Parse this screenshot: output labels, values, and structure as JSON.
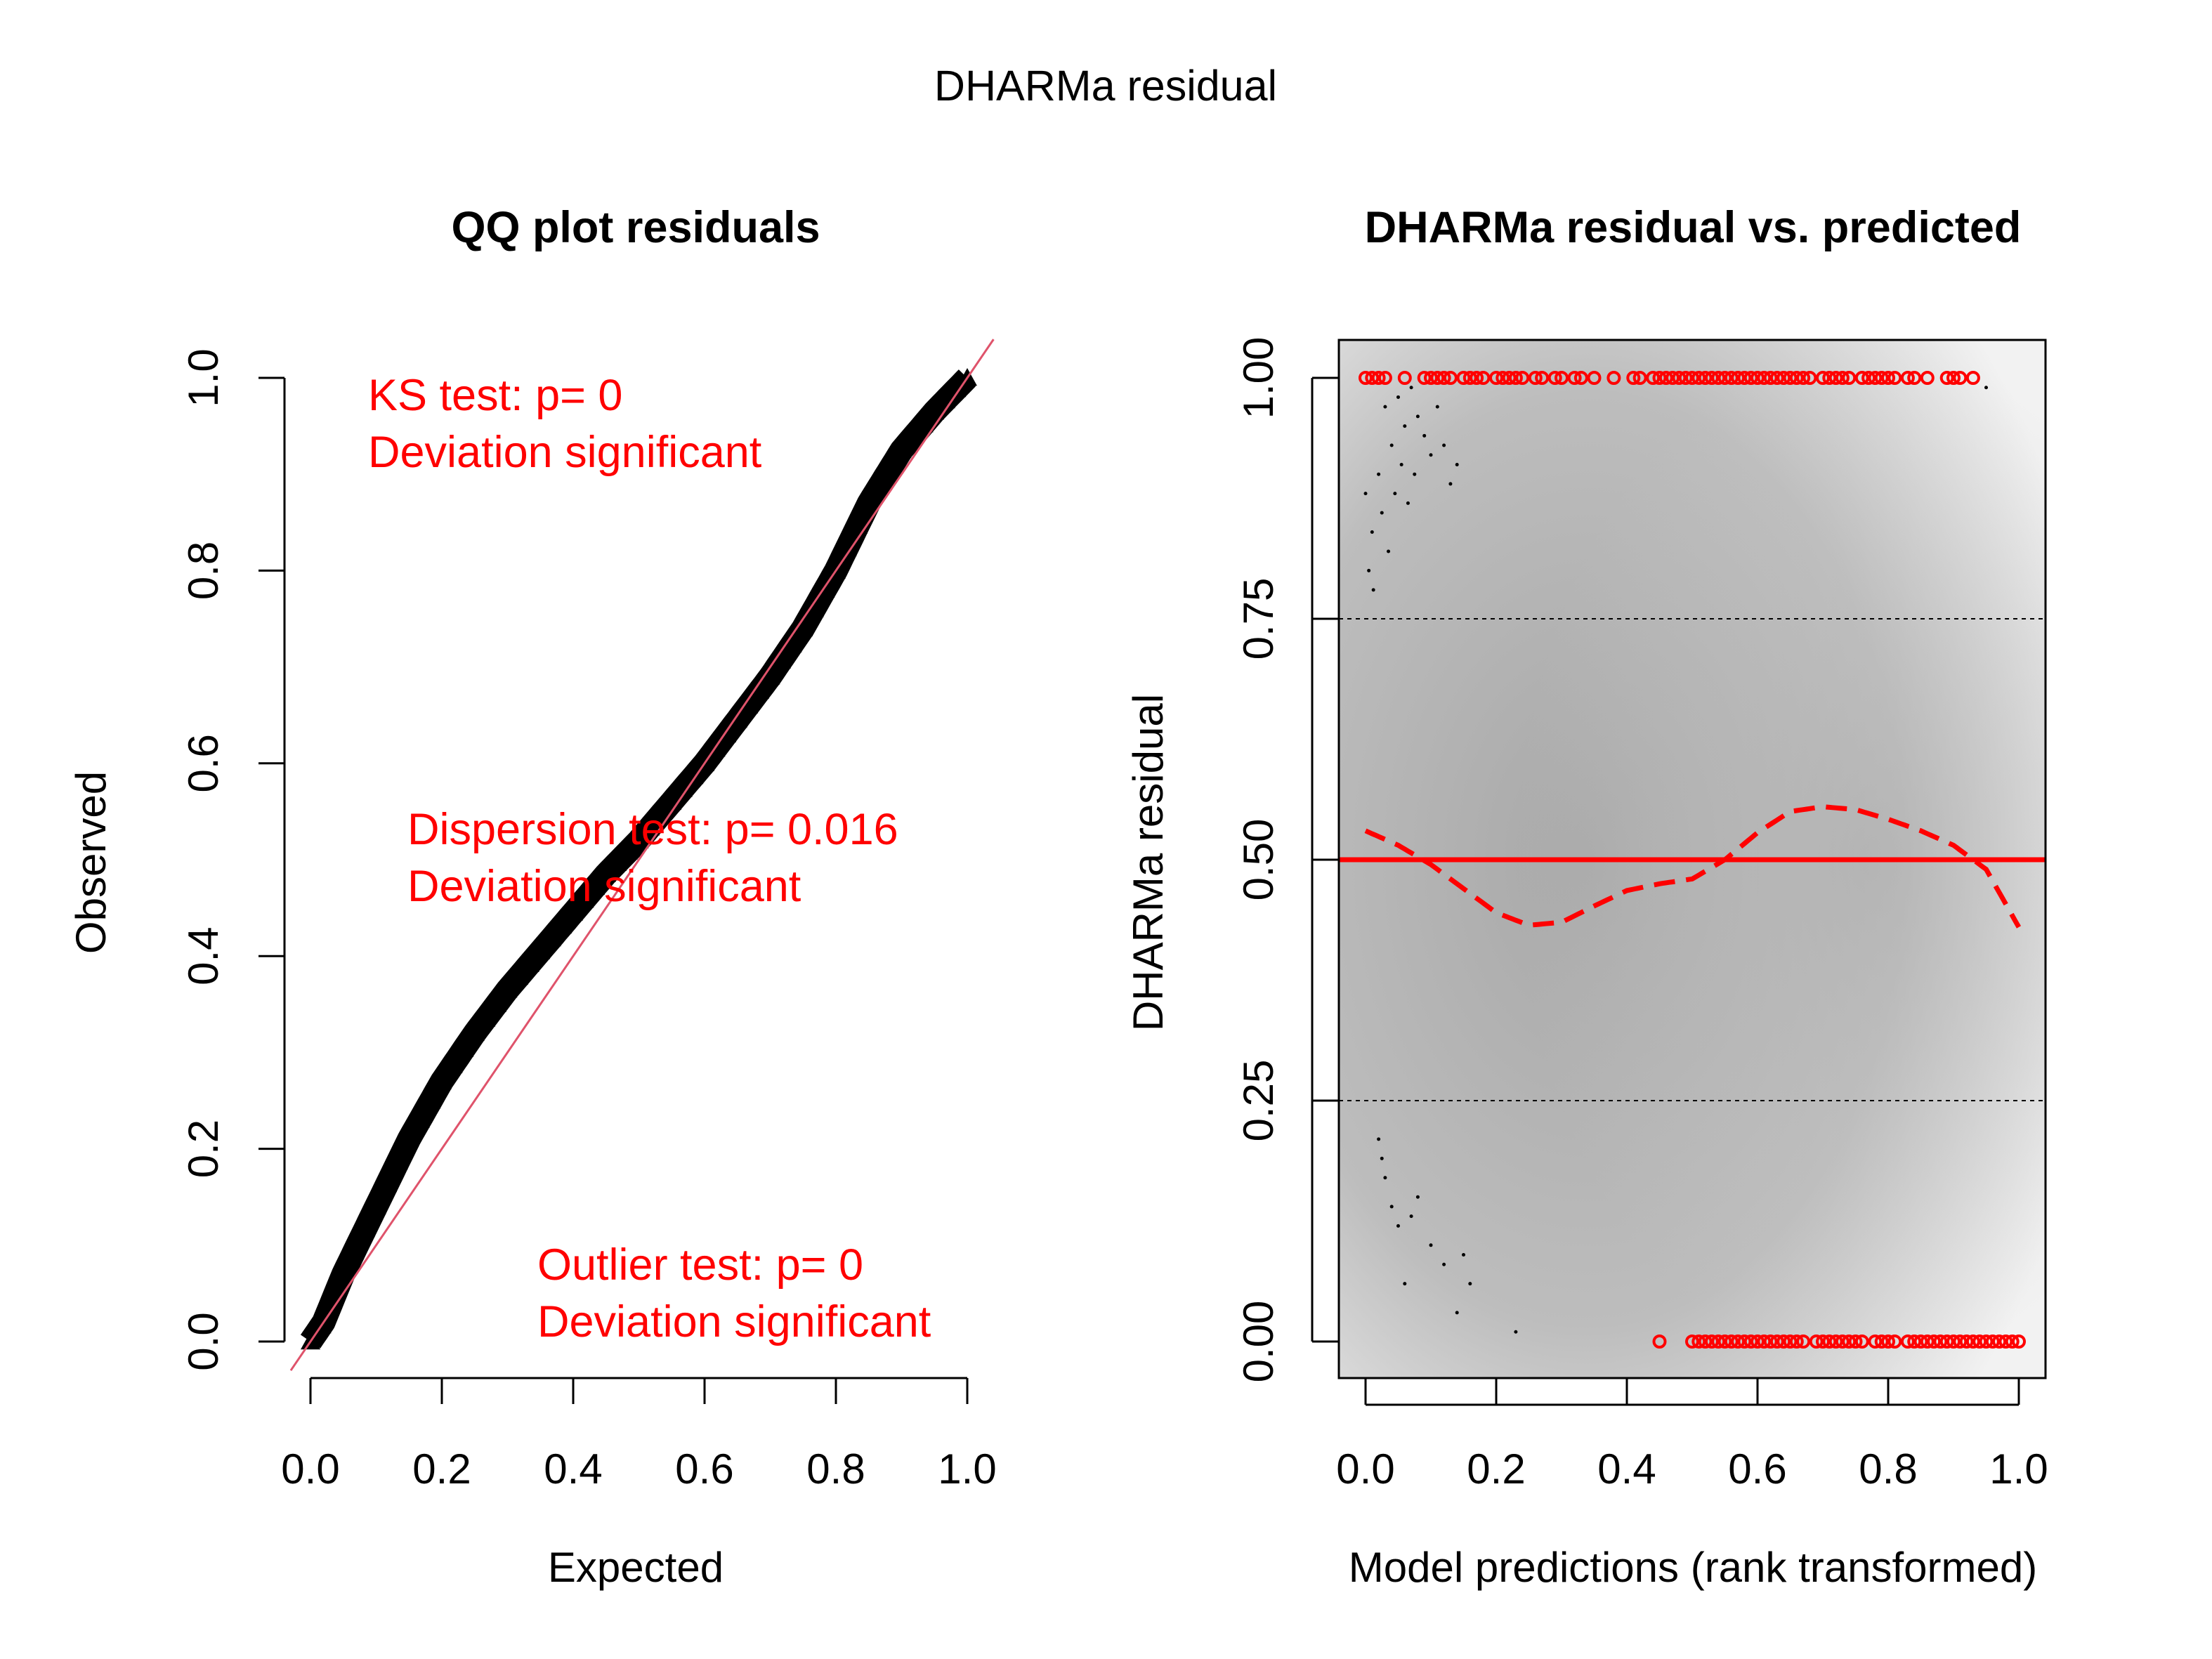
{
  "figure": {
    "title": "DHARMa residual"
  },
  "chart_data": [
    {
      "type": "scatter",
      "panel": "left",
      "title": "QQ plot residuals",
      "xlabel": "Expected",
      "ylabel": "Observed",
      "xlim": [
        0,
        1
      ],
      "ylim": [
        0,
        1
      ],
      "xticks": [
        "0.0",
        "0.2",
        "0.4",
        "0.6",
        "0.8",
        "1.0"
      ],
      "yticks": [
        "0.0",
        "0.2",
        "0.4",
        "0.6",
        "0.8",
        "1.0"
      ],
      "point_color": "#000000",
      "reference_line": {
        "from": [
          0,
          0
        ],
        "to": [
          1,
          1
        ],
        "color": "#DF536B"
      },
      "series": [
        {
          "x": [
            0,
            0.02,
            0.05,
            0.1,
            0.15,
            0.2,
            0.25,
            0.3,
            0.35,
            0.4,
            0.45,
            0.5,
            0.55,
            0.6,
            0.65,
            0.7,
            0.75,
            0.8,
            0.85,
            0.9,
            0.95,
            1.0
          ],
          "y": [
            0,
            0.02,
            0.07,
            0.14,
            0.21,
            0.27,
            0.32,
            0.365,
            0.405,
            0.445,
            0.485,
            0.52,
            0.56,
            0.6,
            0.645,
            0.69,
            0.74,
            0.8,
            0.87,
            0.925,
            0.965,
            1.0
          ]
        }
      ],
      "annotations": [
        {
          "line1": "KS test: p= 0",
          "line2": "Deviation  significant",
          "color": "#FF0000"
        },
        {
          "line1": "Dispersion test: p= 0.016",
          "line2": "Deviation  significant",
          "color": "#FF0000"
        },
        {
          "line1": "Outlier test: p= 0",
          "line2": "Deviation  significant",
          "color": "#FF0000"
        }
      ]
    },
    {
      "type": "scatter",
      "panel": "right",
      "title": "DHARMa residual vs. predicted",
      "xlabel": "Model predictions (rank transformed)",
      "ylabel": "DHARMa residual",
      "xlim": [
        0,
        1
      ],
      "ylim": [
        0,
        1
      ],
      "xticks": [
        "0.0",
        "0.2",
        "0.4",
        "0.6",
        "0.8",
        "1.0"
      ],
      "yticks": [
        "0.00",
        "0.25",
        "0.50",
        "0.75",
        "1.00"
      ],
      "reference_lines": [
        {
          "y": 0.5,
          "color": "#FF0000",
          "style": "solid"
        },
        {
          "y": 0.25,
          "color": "#000000",
          "style": "dotted"
        },
        {
          "y": 0.75,
          "color": "#000000",
          "style": "dotted"
        }
      ],
      "smooth_line": {
        "color": "#FF0000",
        "style": "dashed",
        "x": [
          0.0,
          0.05,
          0.1,
          0.15,
          0.2,
          0.25,
          0.3,
          0.35,
          0.4,
          0.45,
          0.5,
          0.55,
          0.6,
          0.65,
          0.7,
          0.75,
          0.8,
          0.85,
          0.9,
          0.95,
          1.0
        ],
        "y": [
          0.53,
          0.515,
          0.495,
          0.47,
          0.445,
          0.432,
          0.435,
          0.452,
          0.468,
          0.475,
          0.48,
          0.5,
          0.528,
          0.55,
          0.555,
          0.552,
          0.542,
          0.53,
          0.515,
          0.49,
          0.43
        ]
      },
      "outliers": {
        "color": "#FF0000",
        "top_y": 1.0,
        "top_x": [
          0.0,
          0.01,
          0.02,
          0.03,
          0.06,
          0.09,
          0.1,
          0.11,
          0.12,
          0.13,
          0.15,
          0.16,
          0.17,
          0.18,
          0.2,
          0.21,
          0.22,
          0.23,
          0.24,
          0.26,
          0.27,
          0.29,
          0.3,
          0.32,
          0.33,
          0.35,
          0.38,
          0.41,
          0.42,
          0.44,
          0.45,
          0.46,
          0.47,
          0.48,
          0.49,
          0.5,
          0.51,
          0.52,
          0.53,
          0.54,
          0.55,
          0.56,
          0.57,
          0.58,
          0.59,
          0.6,
          0.61,
          0.62,
          0.63,
          0.64,
          0.65,
          0.66,
          0.67,
          0.68,
          0.7,
          0.71,
          0.72,
          0.73,
          0.74,
          0.76,
          0.77,
          0.78,
          0.79,
          0.8,
          0.81,
          0.83,
          0.84,
          0.86,
          0.89,
          0.9,
          0.91,
          0.93
        ],
        "bottom_y": 0.0,
        "bottom_x": [
          0.45,
          0.5,
          0.51,
          0.52,
          0.53,
          0.54,
          0.55,
          0.56,
          0.57,
          0.58,
          0.59,
          0.6,
          0.61,
          0.62,
          0.63,
          0.64,
          0.65,
          0.66,
          0.67,
          0.69,
          0.7,
          0.71,
          0.72,
          0.73,
          0.74,
          0.75,
          0.76,
          0.78,
          0.79,
          0.8,
          0.81,
          0.83,
          0.84,
          0.85,
          0.86,
          0.87,
          0.88,
          0.89,
          0.9,
          0.91,
          0.92,
          0.93,
          0.94,
          0.95,
          0.96,
          0.97,
          0.98,
          0.99,
          1.0
        ]
      },
      "small_points": {
        "color": "#000000",
        "x": [
          0.0,
          0.005,
          0.01,
          0.012,
          0.02,
          0.025,
          0.03,
          0.035,
          0.04,
          0.045,
          0.05,
          0.055,
          0.06,
          0.065,
          0.07,
          0.075,
          0.08,
          0.09,
          0.1,
          0.11,
          0.12,
          0.13,
          0.14,
          0.95,
          0.02,
          0.025,
          0.03,
          0.04,
          0.05,
          0.06,
          0.07,
          0.08,
          0.1,
          0.12,
          0.14,
          0.15,
          0.16,
          0.23
        ],
        "y": [
          0.88,
          0.8,
          0.84,
          0.78,
          0.9,
          0.86,
          0.97,
          0.82,
          0.93,
          0.88,
          0.98,
          0.91,
          0.95,
          0.87,
          0.99,
          0.9,
          0.96,
          0.94,
          0.92,
          0.97,
          0.93,
          0.89,
          0.91,
          0.99,
          0.21,
          0.19,
          0.17,
          0.14,
          0.12,
          0.06,
          0.13,
          0.15,
          0.1,
          0.08,
          0.03,
          0.09,
          0.06,
          0.01
        ]
      }
    }
  ]
}
